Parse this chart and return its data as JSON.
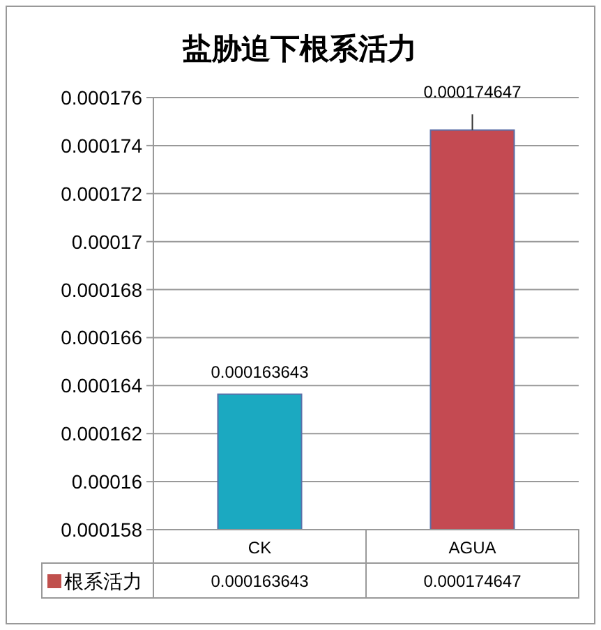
{
  "chart_data": {
    "type": "bar",
    "title": "盐胁迫下根系活力",
    "categories": [
      "CK",
      "AGUA"
    ],
    "series": [
      {
        "name": "根系活力",
        "color": "#c0504d",
        "colors": [
          "#1ba9c1",
          "#c44a52"
        ],
        "values": [
          0.000163643,
          0.000174647
        ],
        "errors": [
          null,
          [
            0.000174647,
            0.0001753
          ]
        ]
      }
    ],
    "ylim": [
      0.000158,
      0.000176
    ],
    "yticks": [
      0.000158,
      0.00016,
      0.000162,
      0.000164,
      0.000166,
      0.000168,
      0.00017,
      0.000172,
      0.000174,
      0.000176
    ],
    "annotations": [
      {
        "text": "0.000163643",
        "x": "CK",
        "y": 0.000163643
      },
      {
        "text": "0.000174647",
        "x": "AGUA",
        "y": 0.000174647
      }
    ],
    "grid": "y",
    "legend": "bottom",
    "data_labels": true
  }
}
